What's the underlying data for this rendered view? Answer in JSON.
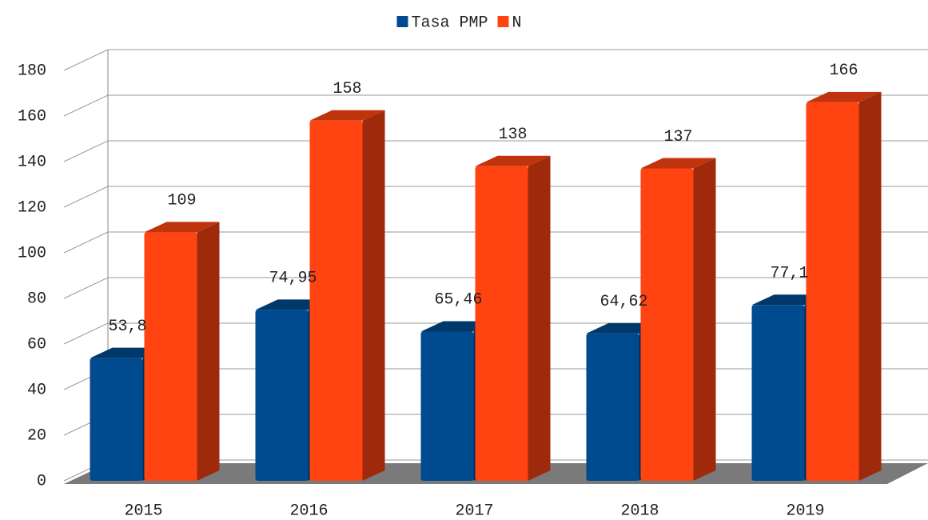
{
  "chart_data": {
    "type": "bar3d",
    "categories": [
      "2015",
      "2016",
      "2017",
      "2018",
      "2019"
    ],
    "series": [
      {
        "name": "Tasa PMP",
        "color": "#004a8f",
        "values": [
          53.8,
          74.95,
          65.46,
          64.62,
          77.1
        ],
        "value_labels": [
          "53,8",
          "74,95",
          "65,46",
          "64,62",
          "77,1"
        ]
      },
      {
        "name": "N",
        "color": "#ff4411",
        "values": [
          109,
          158,
          138,
          137,
          166
        ]
      }
    ],
    "ylim": [
      0,
      180
    ],
    "yticks": [
      0,
      20,
      40,
      60,
      80,
      100,
      120,
      140,
      160,
      180
    ],
    "grid": true,
    "legend": "top"
  }
}
